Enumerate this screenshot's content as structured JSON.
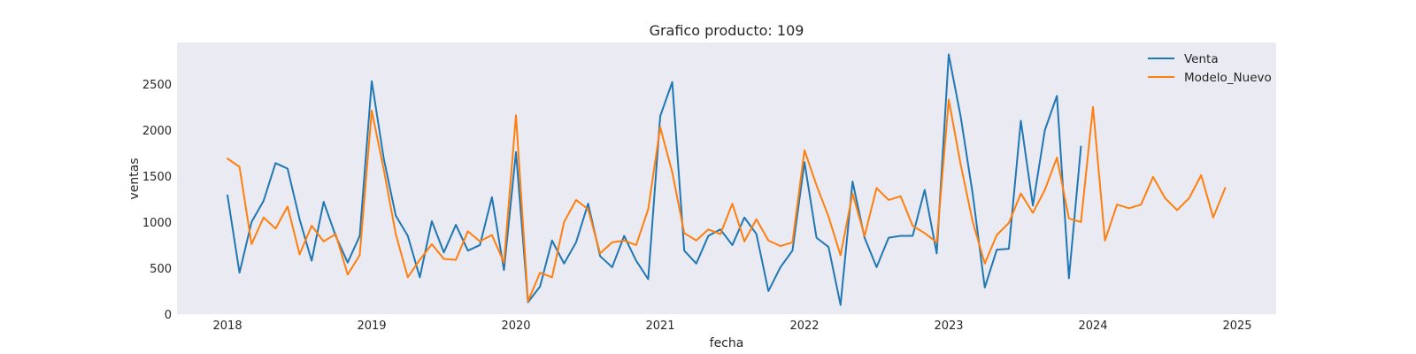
{
  "chart_data": {
    "type": "line",
    "title": "Grafico producto: 109",
    "xlabel": "fecha",
    "ylabel": "ventas",
    "xlim": [
      2017.65,
      2025.27
    ],
    "ylim": [
      0,
      2950
    ],
    "x_ticks": [
      2018,
      2019,
      2020,
      2021,
      2022,
      2023,
      2024,
      2025
    ],
    "y_ticks": [
      0,
      500,
      1000,
      1500,
      2000,
      2500
    ],
    "grid": false,
    "background": "#eaeaf2",
    "legend_position": "top-right",
    "series": [
      {
        "name": "Venta",
        "color": "#1f77b4",
        "start": 2018,
        "step_months": 1,
        "values": [
          1290,
          450,
          1000,
          1230,
          1640,
          1580,
          1030,
          580,
          1220,
          850,
          560,
          850,
          2530,
          1690,
          1070,
          850,
          400,
          1010,
          670,
          970,
          690,
          750,
          1270,
          480,
          1760,
          130,
          300,
          800,
          550,
          780,
          1200,
          630,
          510,
          850,
          580,
          380,
          2150,
          2520,
          690,
          550,
          850,
          920,
          750,
          1050,
          870,
          250,
          510,
          690,
          1650,
          830,
          730,
          100,
          1440,
          830,
          510,
          830,
          850,
          850,
          1350,
          660,
          2820,
          2140,
          1300,
          290,
          700,
          710,
          2100,
          1180,
          2000,
          2370,
          390,
          1820
        ]
      },
      {
        "name": "Modelo_Nuevo",
        "color": "#ff7f0e",
        "start": 2018,
        "step_months": 1,
        "values": [
          1690,
          1600,
          760,
          1050,
          930,
          1170,
          650,
          960,
          790,
          870,
          430,
          640,
          2210,
          1570,
          870,
          400,
          590,
          760,
          600,
          590,
          900,
          790,
          860,
          560,
          2160,
          140,
          450,
          400,
          1000,
          1240,
          1140,
          660,
          780,
          800,
          750,
          1140,
          2030,
          1540,
          880,
          800,
          920,
          870,
          1200,
          790,
          1030,
          800,
          740,
          780,
          1780,
          1400,
          1060,
          640,
          1310,
          850,
          1370,
          1240,
          1280,
          960,
          880,
          780,
          2330,
          1620,
          1000,
          550,
          860,
          990,
          1310,
          1100,
          1350,
          1700,
          1040,
          1000,
          2250,
          800,
          1190,
          1150,
          1190,
          1490,
          1260,
          1130,
          1260,
          1510,
          1050,
          1370
        ]
      }
    ]
  }
}
